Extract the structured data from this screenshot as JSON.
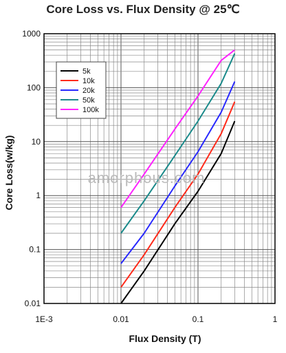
{
  "chart_data": {
    "type": "line",
    "title": "Core Loss vs. Flux Density @ 25℃",
    "xlabel": "Flux Density (T)",
    "ylabel": "Core Loss(w/kg)",
    "xscale": "log",
    "yscale": "log",
    "xlim": [
      0.001,
      1
    ],
    "ylim": [
      0.01,
      1000
    ],
    "xticks": [
      "1E-3",
      "0.01",
      "0.1",
      "1"
    ],
    "yticks": [
      "0.01",
      "0.1",
      "1",
      "10",
      "100",
      "1000"
    ],
    "grid": true,
    "legend_position": "top-left",
    "series": [
      {
        "name": "5k",
        "color": "#000000",
        "x": [
          0.01,
          0.02,
          0.05,
          0.1,
          0.2,
          0.3
        ],
        "y": [
          0.01,
          0.04,
          0.3,
          1.2,
          6,
          24
        ]
      },
      {
        "name": "10k",
        "color": "#ff2a1a",
        "x": [
          0.01,
          0.02,
          0.05,
          0.1,
          0.2,
          0.3
        ],
        "y": [
          0.02,
          0.08,
          0.6,
          2.5,
          14,
          55
        ]
      },
      {
        "name": "20k",
        "color": "#2828ff",
        "x": [
          0.01,
          0.02,
          0.05,
          0.1,
          0.2,
          0.3
        ],
        "y": [
          0.055,
          0.2,
          1.5,
          6.5,
          35,
          130
        ]
      },
      {
        "name": "50k",
        "color": "#1a8a8a",
        "x": [
          0.01,
          0.02,
          0.05,
          0.1,
          0.2,
          0.3
        ],
        "y": [
          0.2,
          0.8,
          5.5,
          24,
          120,
          430
        ]
      },
      {
        "name": "100k",
        "color": "#ff22ff",
        "x": [
          0.01,
          0.02,
          0.05,
          0.1,
          0.2,
          0.3
        ],
        "y": [
          0.6,
          2.5,
          17,
          70,
          320,
          500
        ]
      }
    ],
    "watermark": "amorphous.com"
  }
}
